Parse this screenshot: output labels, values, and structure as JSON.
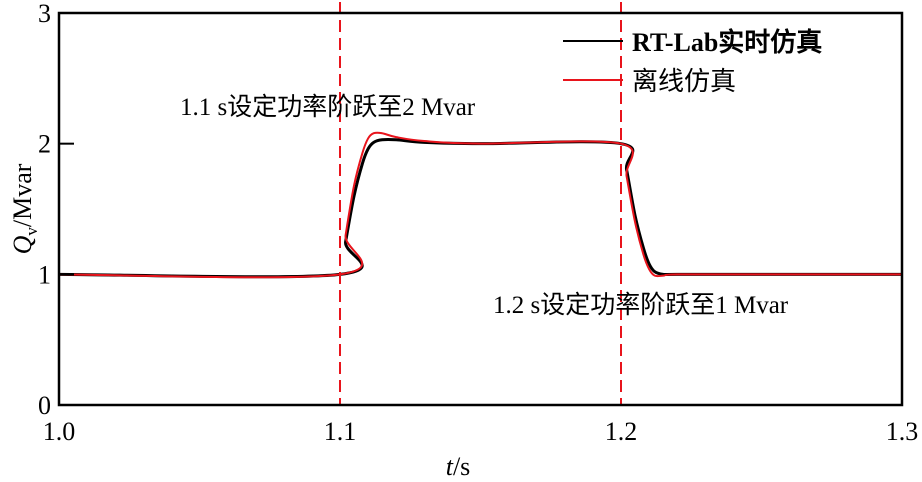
{
  "chart_data": {
    "type": "line",
    "title": "",
    "xlabel": "t/s",
    "ylabel": "Qv/Mvar",
    "xlim": [
      1.0,
      1.3
    ],
    "ylim": [
      0,
      3
    ],
    "xticks": [
      "1.0",
      "1.1",
      "1.2",
      "1.3"
    ],
    "yticks": [
      "0",
      "1",
      "2",
      "3"
    ],
    "grid": false,
    "legend_position": "upper right",
    "series": [
      {
        "name": "RT-Lab实时仿真",
        "color": "#000000",
        "x": [
          1.0,
          1.1,
          1.102,
          1.105,
          1.108,
          1.11,
          1.112,
          1.115,
          1.12,
          1.13,
          1.15,
          1.2,
          1.202,
          1.205,
          1.208,
          1.21,
          1.212,
          1.215,
          1.22,
          1.25,
          1.3
        ],
        "y": [
          1.0,
          1.0,
          1.25,
          1.6,
          1.85,
          1.96,
          2.01,
          2.03,
          2.03,
          2.01,
          2.0,
          2.0,
          1.8,
          1.45,
          1.2,
          1.08,
          1.02,
          1.0,
          1.0,
          1.0,
          1.0
        ]
      },
      {
        "name": "离线仿真",
        "color": "#e8141c",
        "x": [
          1.0,
          1.1,
          1.102,
          1.105,
          1.108,
          1.11,
          1.112,
          1.115,
          1.12,
          1.13,
          1.15,
          1.2,
          1.202,
          1.205,
          1.208,
          1.21,
          1.212,
          1.215,
          1.22,
          1.25,
          1.3
        ],
        "y": [
          1.0,
          1.0,
          1.3,
          1.68,
          1.93,
          2.04,
          2.08,
          2.08,
          2.05,
          2.02,
          2.0,
          2.0,
          1.75,
          1.4,
          1.15,
          1.04,
          0.99,
          0.99,
          1.0,
          1.0,
          1.0
        ]
      }
    ],
    "vlines": [
      {
        "x": 1.1,
        "style": "dashed",
        "color": "#e8141c"
      },
      {
        "x": 1.2,
        "style": "dashed",
        "color": "#e8141c"
      }
    ],
    "annotations": [
      {
        "text": "1.1 s设定功率阶跃至2 Mvar",
        "x": 1.05,
        "y": 2.3
      },
      {
        "text": "1.2 s设定功率阶跃至1 Mvar",
        "x": 1.25,
        "y": 0.78
      }
    ]
  },
  "labels": {
    "xlabel_italic": "t",
    "xlabel_rest": "/s",
    "ylabel_italic": "Q",
    "ylabel_sub": "v",
    "ylabel_rest": "/Mvar",
    "legend": [
      "RT-Lab实时仿真",
      "离线仿真"
    ],
    "annotation1": "1.1 s设定功率阶跃至2 Mvar",
    "annotation2": "1.2 s设定功率阶跃至1 Mvar",
    "xticks": [
      "1.0",
      "1.1",
      "1.2",
      "1.3"
    ],
    "yticks": [
      "0",
      "1",
      "2",
      "3"
    ]
  }
}
